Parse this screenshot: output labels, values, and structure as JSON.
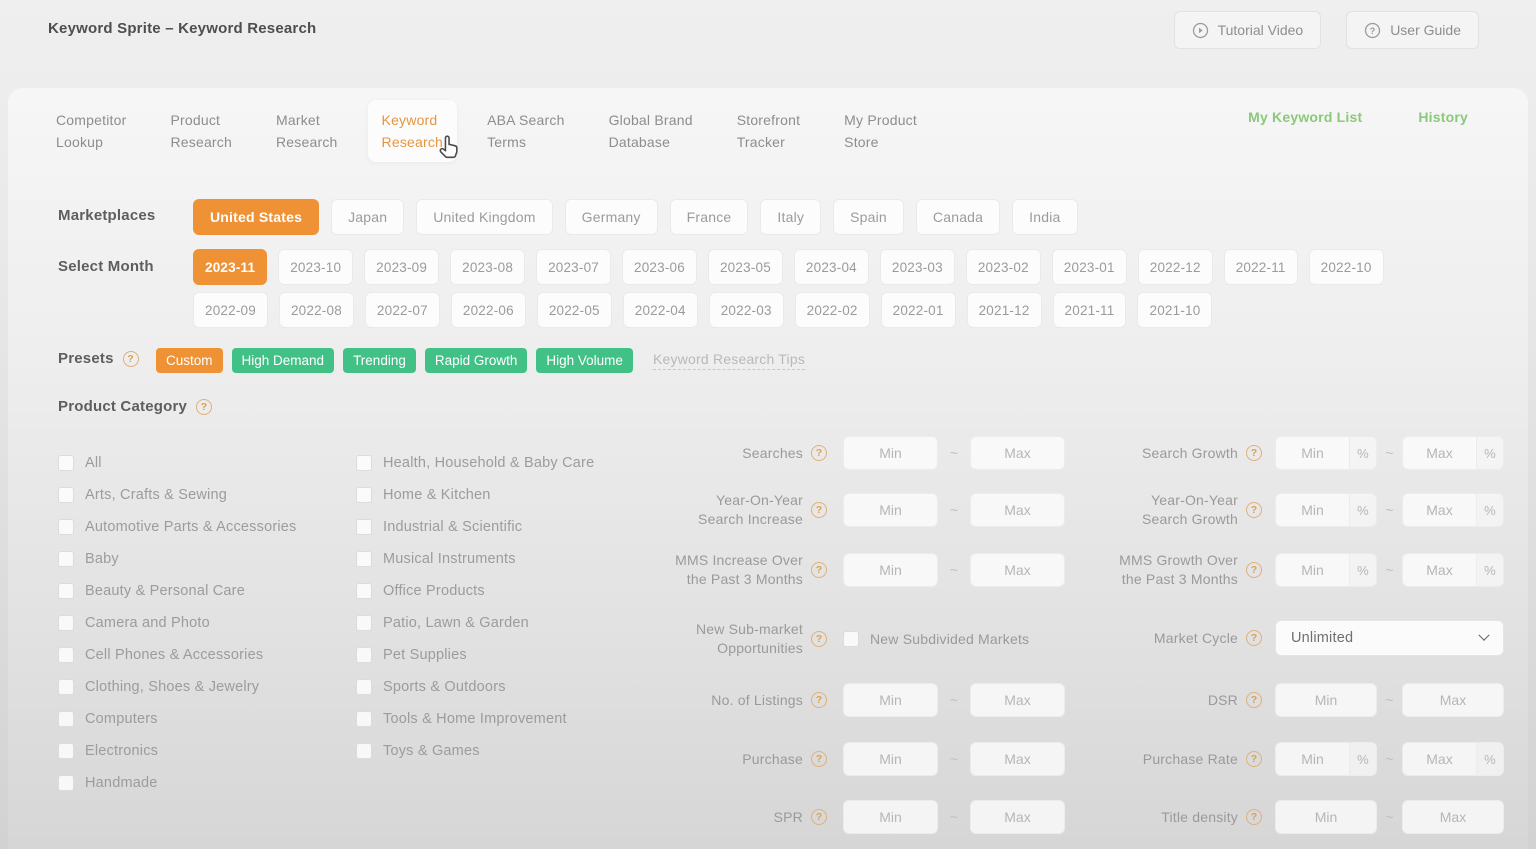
{
  "header": {
    "title": "Keyword Sprite – Keyword Research",
    "buttons": [
      {
        "label": "Tutorial Video",
        "icon": "play-circle-icon"
      },
      {
        "label": "User Guide",
        "icon": "help-circle-icon"
      }
    ]
  },
  "icons": {
    "help_glyph": "?"
  },
  "tabs": {
    "items": [
      {
        "label": "Competitor\nLookup",
        "active": false
      },
      {
        "label": "Product\nResearch",
        "active": false
      },
      {
        "label": "Market\nResearch",
        "active": false
      },
      {
        "label": "Keyword\nResearch",
        "active": true
      },
      {
        "label": "ABA Search\nTerms",
        "active": false
      },
      {
        "label": "Global Brand\nDatabase",
        "active": false
      },
      {
        "label": "Storefront\nTracker",
        "active": false
      },
      {
        "label": "My Product\nStore",
        "active": false
      }
    ],
    "links": [
      "My Keyword List",
      "History"
    ]
  },
  "marketplaces": {
    "label": "Marketplaces",
    "selected": "United States",
    "options": [
      "United States",
      "Japan",
      "United Kingdom",
      "Germany",
      "France",
      "Italy",
      "Spain",
      "Canada",
      "India"
    ]
  },
  "months": {
    "label": "Select Month",
    "selected": "2023-11",
    "row1": [
      "2023-11",
      "2023-10",
      "2023-09",
      "2023-08",
      "2023-07",
      "2023-06",
      "2023-05",
      "2023-04",
      "2023-03",
      "2023-02",
      "2023-01",
      "2022-12",
      "2022-11",
      "2022-10"
    ],
    "row2": [
      "2022-09",
      "2022-08",
      "2022-07",
      "2022-06",
      "2022-05",
      "2022-04",
      "2022-03",
      "2022-02",
      "2022-01",
      "2021-12",
      "2021-11",
      "2021-10"
    ]
  },
  "presets": {
    "label": "Presets",
    "options": [
      {
        "label": "Custom",
        "color": "orange"
      },
      {
        "label": "High Demand",
        "color": "green"
      },
      {
        "label": "Trending",
        "color": "green"
      },
      {
        "label": "Rapid Growth",
        "color": "green"
      },
      {
        "label": "High Volume",
        "color": "green"
      }
    ],
    "tips_link": "Keyword Research Tips"
  },
  "product_category": {
    "label": "Product Category",
    "column1": [
      "All",
      "Arts, Crafts & Sewing",
      "Automotive Parts & Accessories",
      "Baby",
      "Beauty & Personal Care",
      "Camera and Photo",
      "Cell Phones & Accessories",
      "Clothing, Shoes & Jewelry",
      "Computers",
      "Electronics",
      "Handmade"
    ],
    "column2": [
      "Health, Household & Baby Care",
      "Home & Kitchen",
      "Industrial & Scientific",
      "Musical Instruments",
      "Office Products",
      "Patio, Lawn & Garden",
      "Pet Supplies",
      "Sports & Outdoors",
      "Tools & Home Improvement",
      "Toys & Games"
    ]
  },
  "filters": {
    "placeholders": {
      "min": "Min",
      "max": "Max"
    },
    "tilde": "~",
    "percent": "%",
    "left": [
      {
        "label": "Searches",
        "type": "range",
        "percent": false
      },
      {
        "label": "Year-On-Year\nSearch Increase",
        "type": "range",
        "percent": false
      },
      {
        "label": "MMS Increase Over\nthe Past 3 Months",
        "type": "range",
        "percent": false
      },
      {
        "label": "New Sub-market\nOpportunities",
        "type": "checkbox",
        "option": "New Subdivided Markets"
      },
      {
        "label": "No. of Listings",
        "type": "range",
        "percent": false
      },
      {
        "label": "Purchase",
        "type": "range",
        "percent": false
      },
      {
        "label": "SPR",
        "type": "range",
        "percent": false
      }
    ],
    "right": [
      {
        "label": "Search Growth",
        "type": "range",
        "percent": true
      },
      {
        "label": "Year-On-Year\nSearch Growth",
        "type": "range",
        "percent": true
      },
      {
        "label": "MMS Growth Over\nthe Past 3 Months",
        "type": "range",
        "percent": true
      },
      {
        "label": "Market Cycle",
        "type": "select",
        "value": "Unlimited"
      },
      {
        "label": "DSR",
        "type": "range",
        "percent": false
      },
      {
        "label": "Purchase Rate",
        "type": "range",
        "percent": true
      },
      {
        "label": "Title density",
        "type": "range",
        "percent": false
      }
    ]
  }
}
